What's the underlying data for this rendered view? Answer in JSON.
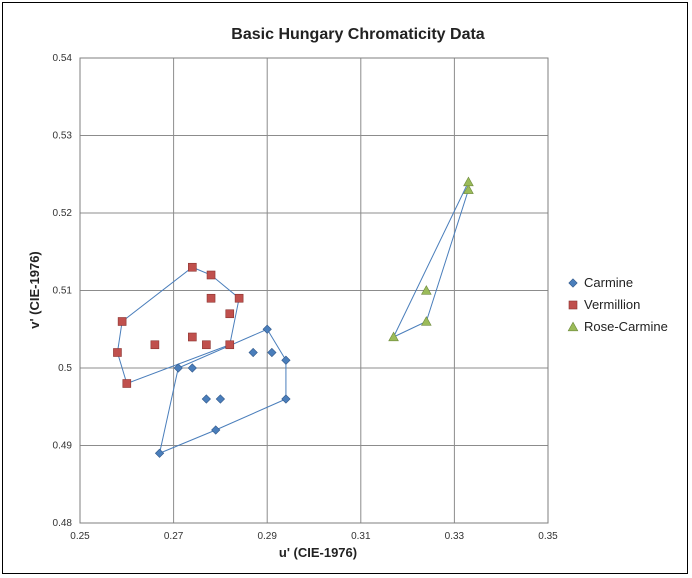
{
  "chart_data": {
    "type": "scatter",
    "title": "Basic Hungary Chromaticity Data",
    "xlabel": "u' (CIE-1976)",
    "ylabel": "v' (CIE-1976)",
    "xlim": [
      0.25,
      0.35
    ],
    "ylim": [
      0.48,
      0.54
    ],
    "xticks": [
      "0.25",
      "0.27",
      "0.29",
      "0.31",
      "0.33",
      "0.35"
    ],
    "yticks": [
      "0.48",
      "0.49",
      "0.5",
      "0.51",
      "0.52",
      "0.53",
      "0.54"
    ],
    "grid": true,
    "legend_position": "right",
    "series": [
      {
        "name": "Carmine",
        "marker": "diamond",
        "color": "#4a7ebb",
        "points": [
          [
            0.267,
            0.489
          ],
          [
            0.279,
            0.492
          ],
          [
            0.294,
            0.496
          ],
          [
            0.277,
            0.496
          ],
          [
            0.28,
            0.496
          ],
          [
            0.271,
            0.5
          ],
          [
            0.274,
            0.5
          ],
          [
            0.287,
            0.502
          ],
          [
            0.291,
            0.502
          ],
          [
            0.294,
            0.501
          ],
          [
            0.29,
            0.505
          ]
        ],
        "hull": [
          [
            0.267,
            0.489
          ],
          [
            0.279,
            0.492
          ],
          [
            0.294,
            0.496
          ],
          [
            0.294,
            0.501
          ],
          [
            0.29,
            0.505
          ],
          [
            0.271,
            0.5
          ],
          [
            0.267,
            0.489
          ]
        ]
      },
      {
        "name": "Vermillion",
        "marker": "square",
        "color": "#c0504d",
        "points": [
          [
            0.258,
            0.502
          ],
          [
            0.259,
            0.506
          ],
          [
            0.26,
            0.498
          ],
          [
            0.266,
            0.503
          ],
          [
            0.274,
            0.513
          ],
          [
            0.278,
            0.512
          ],
          [
            0.278,
            0.509
          ],
          [
            0.284,
            0.509
          ],
          [
            0.282,
            0.507
          ],
          [
            0.274,
            0.504
          ],
          [
            0.277,
            0.503
          ],
          [
            0.282,
            0.503
          ]
        ],
        "hull": [
          [
            0.26,
            0.498
          ],
          [
            0.282,
            0.503
          ],
          [
            0.284,
            0.509
          ],
          [
            0.278,
            0.512
          ],
          [
            0.274,
            0.513
          ],
          [
            0.259,
            0.506
          ],
          [
            0.258,
            0.502
          ],
          [
            0.26,
            0.498
          ]
        ]
      },
      {
        "name": "Rose-Carmine",
        "marker": "triangle",
        "color": "#9bbb59",
        "points": [
          [
            0.317,
            0.504
          ],
          [
            0.324,
            0.506
          ],
          [
            0.324,
            0.51
          ],
          [
            0.333,
            0.523
          ],
          [
            0.333,
            0.524
          ]
        ],
        "hull": [
          [
            0.317,
            0.504
          ],
          [
            0.324,
            0.506
          ],
          [
            0.333,
            0.523
          ],
          [
            0.333,
            0.524
          ],
          [
            0.317,
            0.504
          ]
        ]
      }
    ]
  }
}
